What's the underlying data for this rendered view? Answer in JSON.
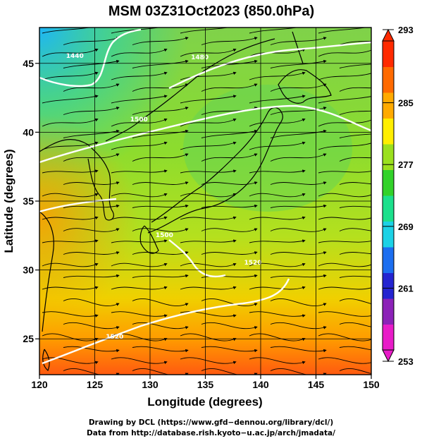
{
  "title": "MSM 03Z31Oct2023 (850.0hPa)",
  "x_axis": {
    "label": "Longitude (degrees)",
    "range": [
      120,
      150
    ],
    "ticks": [
      {
        "value": 120,
        "label": "120"
      },
      {
        "value": 125,
        "label": "125"
      },
      {
        "value": 130,
        "label": "130"
      },
      {
        "value": 135,
        "label": "135"
      },
      {
        "value": 140,
        "label": "140"
      },
      {
        "value": 145,
        "label": "145"
      },
      {
        "value": 150,
        "label": "150"
      }
    ]
  },
  "y_axis": {
    "label": "Latitude  (degrees)",
    "range": [
      22.4,
      47.6
    ],
    "ticks": [
      {
        "value": 25,
        "label": "25"
      },
      {
        "value": 30,
        "label": "30"
      },
      {
        "value": 35,
        "label": "35"
      },
      {
        "value": 40,
        "label": "40"
      },
      {
        "value": 45,
        "label": "45"
      }
    ]
  },
  "colorbar": {
    "min": 253,
    "max": 293,
    "labels": [
      {
        "value": 293,
        "label": "293"
      },
      {
        "value": 285,
        "label": "285"
      },
      {
        "value": 277,
        "label": "277"
      },
      {
        "value": 269,
        "label": "269"
      },
      {
        "value": 261,
        "label": "261"
      },
      {
        "value": 253,
        "label": "253"
      }
    ],
    "colors": [
      "#e81cc8",
      "#8c22b8",
      "#2424d0",
      "#1c6ef0",
      "#1cd2e6",
      "#1ce08c",
      "#32d22a",
      "#9be01e",
      "#ffee00",
      "#ffaa00",
      "#ff6a00",
      "#ff2a00"
    ]
  },
  "contours": [
    {
      "label": "1440",
      "lon": 123.2,
      "lat": 45.4
    },
    {
      "label": "1480",
      "lon": 134.5,
      "lat": 45.3
    },
    {
      "label": "1500",
      "lon": 129.0,
      "lat": 40.8
    },
    {
      "label": "1500",
      "lon": 131.3,
      "lat": 32.4
    },
    {
      "label": "1520",
      "lon": 126.8,
      "lat": 25.0
    },
    {
      "label": "1520",
      "lon": 139.3,
      "lat": 30.4
    }
  ],
  "credits": {
    "line1": "Drawing by DCL (https://www.gfd−dennou.org/library/dcl/)",
    "line2": "Data from http://database.rish.kyoto−u.ac.jp/arch/jmadata/"
  }
}
